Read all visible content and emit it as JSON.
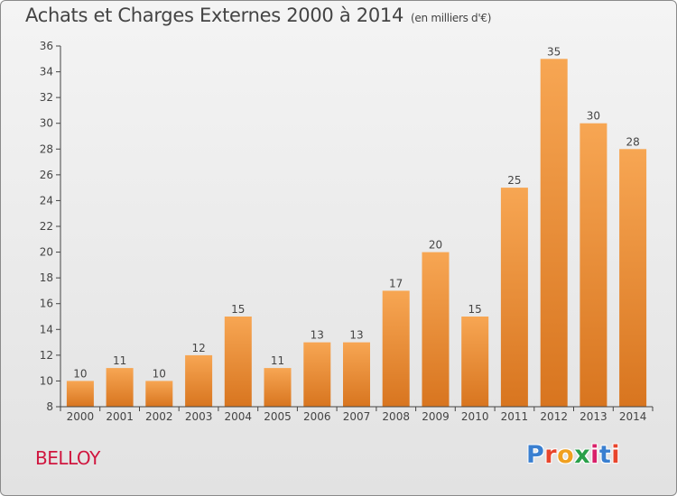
{
  "title": "Achats et Charges Externes 2000 à 2014",
  "title_unit": "(en milliers d'€)",
  "city": "BELLOY",
  "logo": "Proxiti",
  "logo_colors": [
    "#3a7fd0",
    "#e8452c",
    "#f0a020",
    "#2aa04a",
    "#d8206a",
    "#3a7fd0",
    "#e8452c"
  ],
  "chart_data": {
    "type": "bar",
    "title": "Achats et Charges Externes 2000 à 2014",
    "xlabel": "",
    "ylabel": "",
    "categories": [
      "2000",
      "2001",
      "2002",
      "2003",
      "2004",
      "2005",
      "2006",
      "2007",
      "2008",
      "2009",
      "2010",
      "2011",
      "2012",
      "2013",
      "2014"
    ],
    "values": [
      10,
      11,
      10,
      12,
      15,
      11,
      13,
      13,
      17,
      20,
      15,
      25,
      35,
      30,
      28
    ],
    "ylim": [
      8,
      36
    ],
    "yticks": [
      8,
      10,
      12,
      14,
      16,
      18,
      20,
      22,
      24,
      26,
      28,
      30,
      32,
      34,
      36
    ],
    "grid": false,
    "bar_color_top": "#f7a653",
    "bar_color_bottom": "#d8751f"
  }
}
